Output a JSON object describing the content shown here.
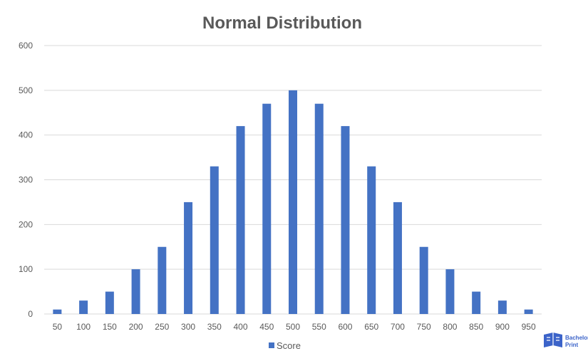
{
  "chart_data": {
    "type": "bar",
    "title": "Normal Distribution",
    "xlabel": "",
    "ylabel": "",
    "categories": [
      "50",
      "100",
      "150",
      "200",
      "250",
      "300",
      "350",
      "400",
      "450",
      "500",
      "550",
      "600",
      "650",
      "700",
      "750",
      "800",
      "850",
      "900",
      "950"
    ],
    "series": [
      {
        "name": "Score",
        "values": [
          10,
          30,
          50,
          100,
          150,
          250,
          330,
          420,
          470,
          500,
          470,
          420,
          330,
          250,
          150,
          100,
          50,
          30,
          10
        ]
      }
    ],
    "ylim": [
      0,
      600
    ],
    "yticks": [
      "0",
      "100",
      "200",
      "300",
      "400",
      "500",
      "600"
    ],
    "grid": true,
    "legend_position": "bottom",
    "bar_color": "#4472C4",
    "grid_color": "#D9D9D9",
    "text_color": "#595959"
  },
  "watermark": {
    "line1": "Bachelor",
    "line2": "Print",
    "icon": "bachelorprint-logo-icon",
    "color": "#3B63C9"
  }
}
